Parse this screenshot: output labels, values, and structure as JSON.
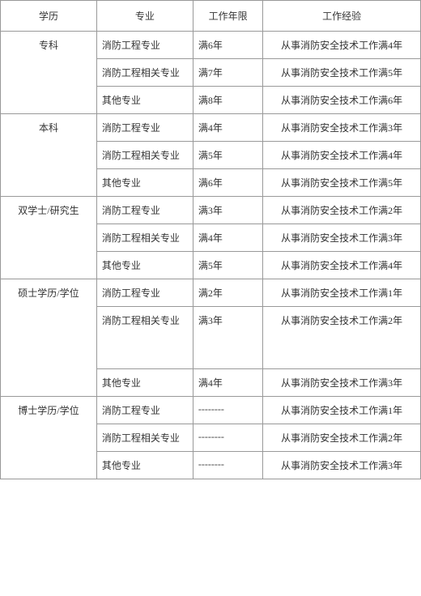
{
  "headers": {
    "education": "学历",
    "major": "专业",
    "workYears": "工作年限",
    "experience": "工作经验"
  },
  "educations": [
    {
      "name": "专科",
      "rows": [
        {
          "major": "消防工程专业",
          "years": "满6年",
          "exp": "从事消防安全技术工作满4年"
        },
        {
          "major": "消防工程相关专业",
          "years": "满7年",
          "exp": "从事消防安全技术工作满5年"
        },
        {
          "major": "其他专业",
          "years": "满8年",
          "exp": "从事消防安全技术工作满6年"
        }
      ]
    },
    {
      "name": "本科",
      "rows": [
        {
          "major": "消防工程专业",
          "years": "满4年",
          "exp": "从事消防安全技术工作满3年"
        },
        {
          "major": "消防工程相关专业",
          "years": "满5年",
          "exp": "从事消防安全技术工作满4年"
        },
        {
          "major": "其他专业",
          "years": "满6年",
          "exp": "从事消防安全技术工作满5年"
        }
      ]
    },
    {
      "name": "双学士/研究生",
      "rows": [
        {
          "major": "消防工程专业",
          "years": "满3年",
          "exp": "从事消防安全技术工作满2年"
        },
        {
          "major": "消防工程相关专业",
          "years": "满4年",
          "exp": "从事消防安全技术工作满3年"
        },
        {
          "major": "其他专业",
          "years": "满5年",
          "exp": "从事消防安全技术工作满4年"
        }
      ]
    },
    {
      "name": "硕士学历/学位",
      "rows": [
        {
          "major": "消防工程专业",
          "years": "满2年",
          "exp": "从事消防安全技术工作满1年"
        },
        {
          "major": "消防工程相关专业",
          "years": "满3年",
          "exp": "从事消防安全技术工作满2年",
          "tall": true
        },
        {
          "major": "其他专业",
          "years": "满4年",
          "exp": "从事消防安全技术工作满3年"
        }
      ]
    },
    {
      "name": "博士学历/学位",
      "rows": [
        {
          "major": "消防工程专业",
          "years": "--------",
          "exp": "从事消防安全技术工作满1年"
        },
        {
          "major": "消防工程相关专业",
          "years": "--------",
          "exp": "从事消防安全技术工作满2年"
        },
        {
          "major": "其他专业",
          "years": "--------",
          "exp": "从事消防安全技术工作满3年"
        }
      ]
    }
  ]
}
